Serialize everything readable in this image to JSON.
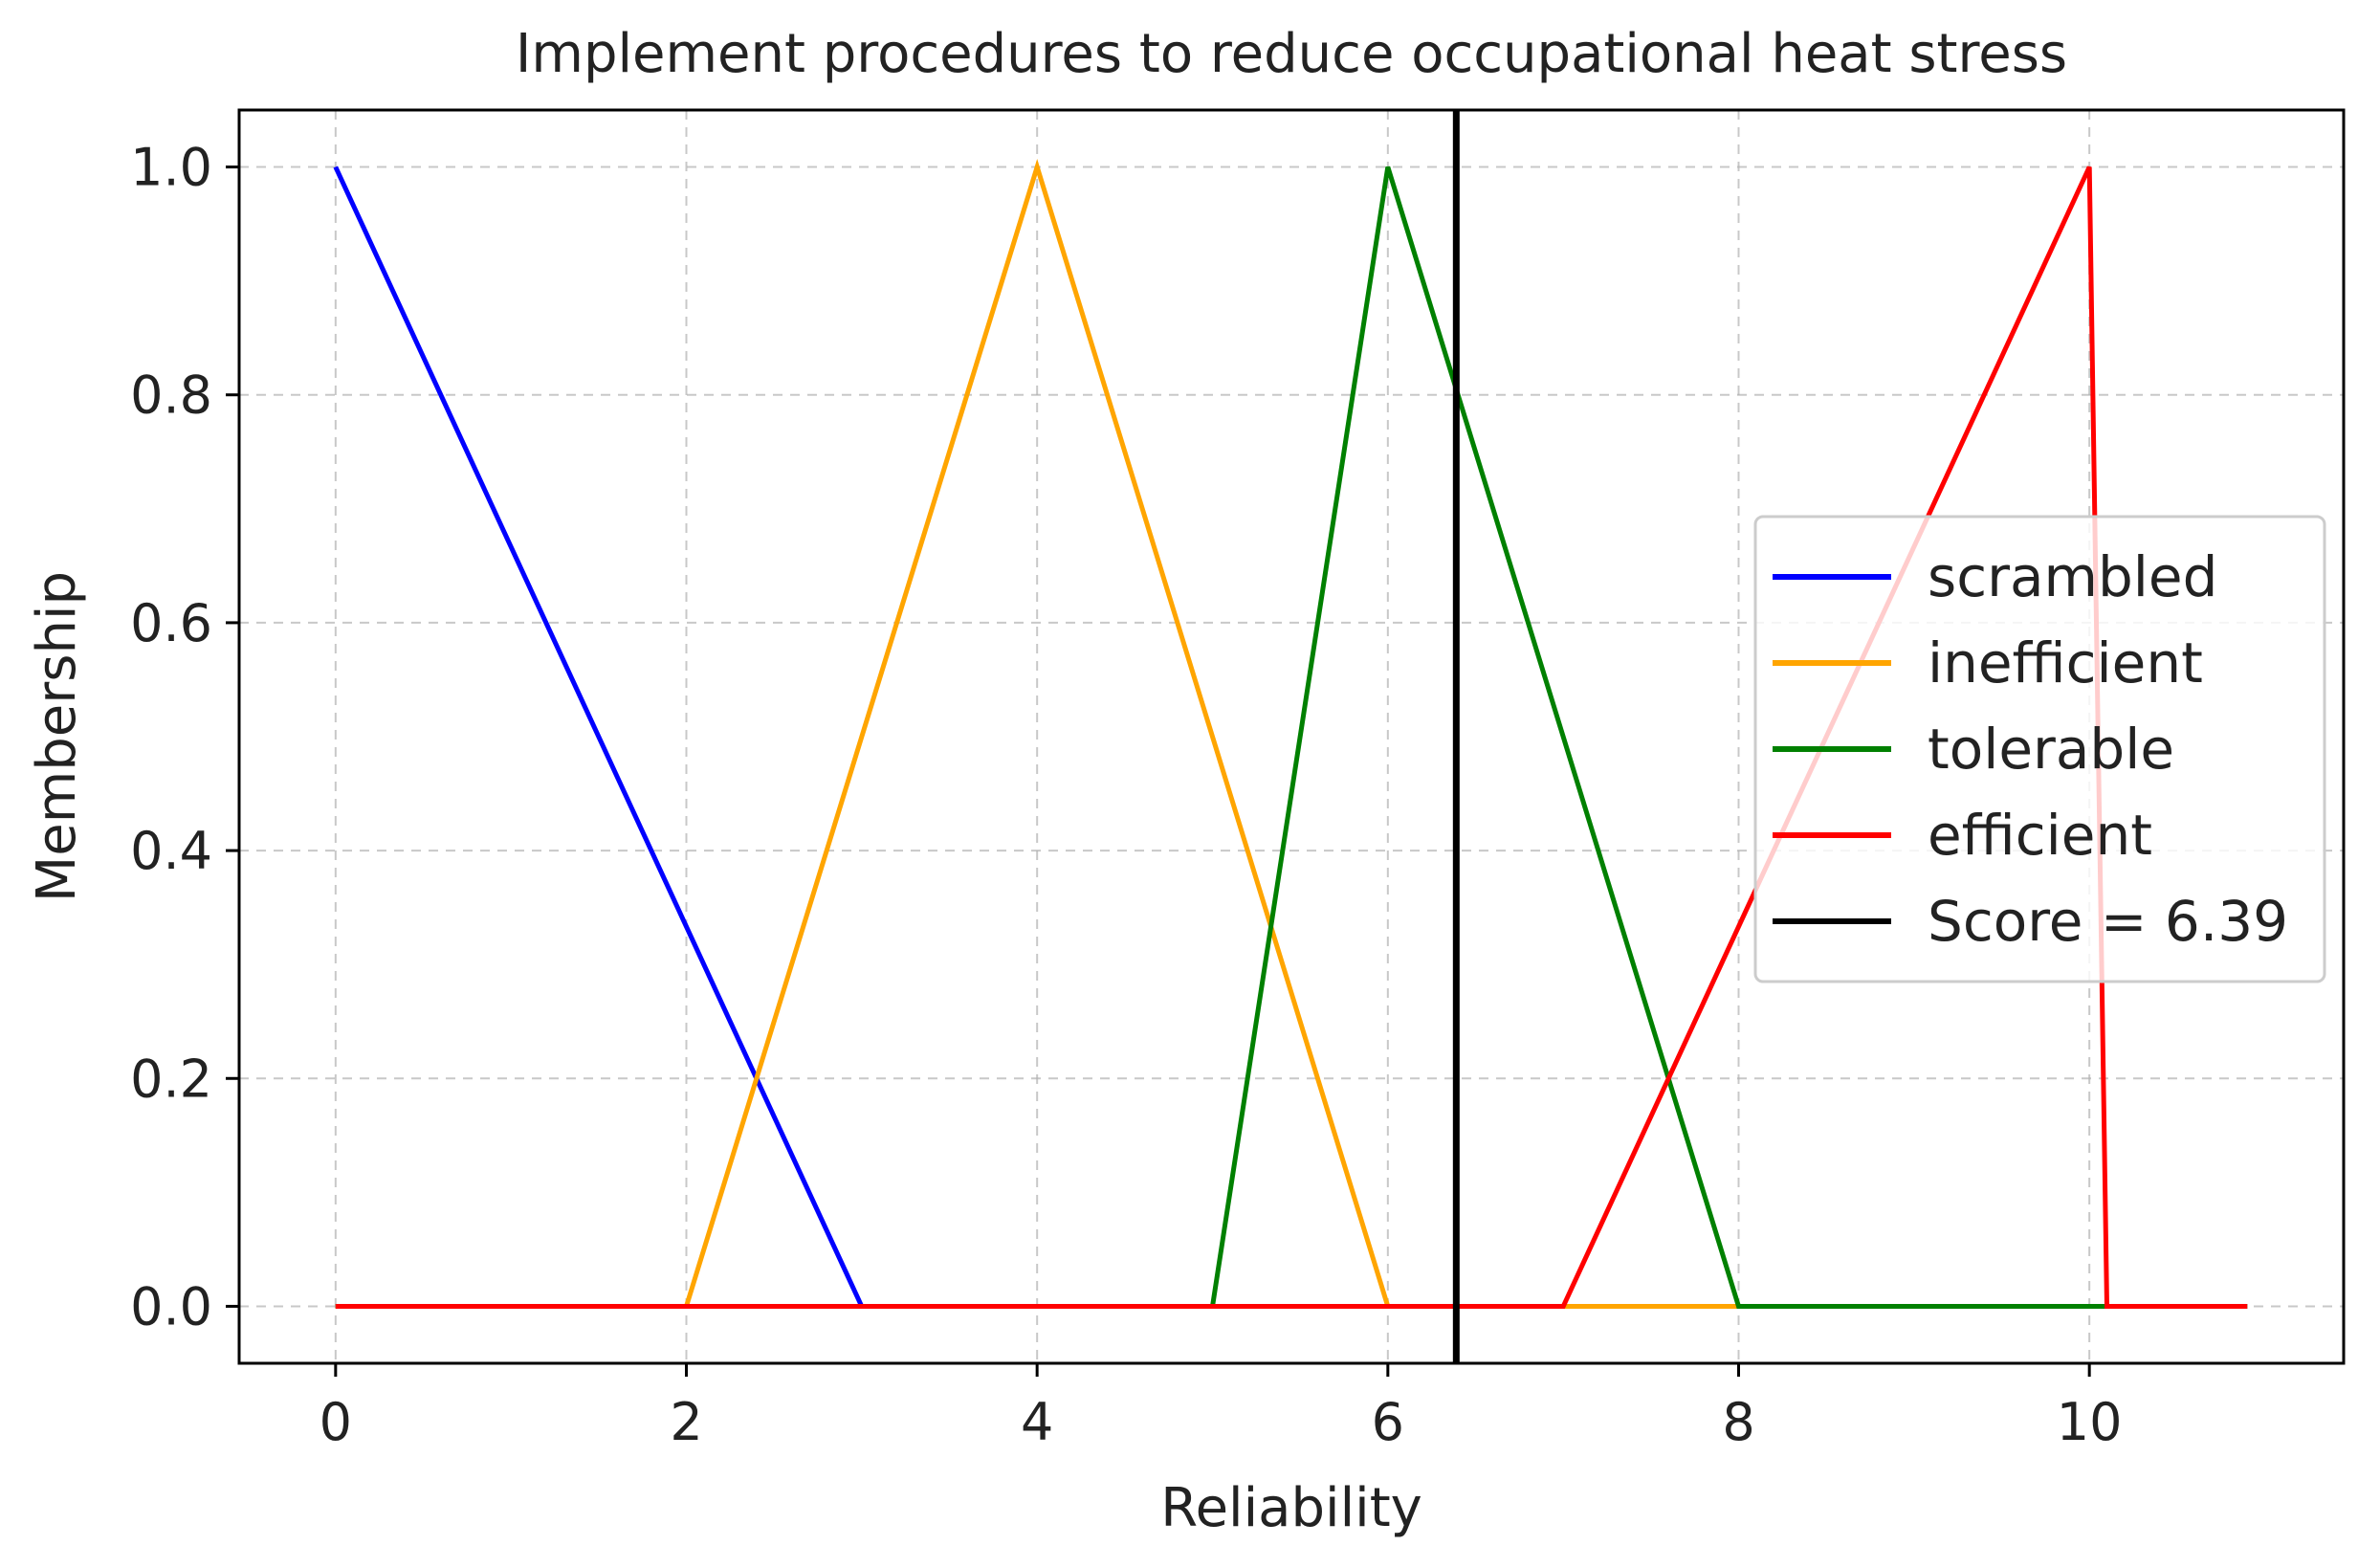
{
  "chart_data": {
    "type": "line",
    "title": "Implement procedures to reduce occupational heat stress",
    "xlabel": "Reliability",
    "ylabel": "Membership",
    "xlim": [
      -0.55,
      11.45
    ],
    "ylim": [
      -0.05,
      1.05
    ],
    "xticks": [
      0,
      2,
      4,
      6,
      8,
      10
    ],
    "xtick_labels": [
      "0",
      "2",
      "4",
      "6",
      "8",
      "10"
    ],
    "yticks": [
      0.0,
      0.2,
      0.4,
      0.6,
      0.8,
      1.0
    ],
    "ytick_labels": [
      "0.0",
      "0.2",
      "0.4",
      "0.6",
      "0.8",
      "1.0"
    ],
    "grid": true,
    "legend_position": "center-right",
    "series": [
      {
        "name": "scrambled",
        "color": "#0000ff",
        "x": [
          0,
          3,
          10.9
        ],
        "y": [
          1,
          0,
          0
        ]
      },
      {
        "name": "inefficient",
        "color": "#ffa500",
        "x": [
          0,
          2,
          4,
          6,
          10.9
        ],
        "y": [
          0,
          0,
          1,
          0,
          0
        ]
      },
      {
        "name": "tolerable",
        "color": "#008000",
        "x": [
          0,
          5,
          6,
          8,
          10.9
        ],
        "y": [
          0,
          0,
          1,
          0,
          0
        ]
      },
      {
        "name": "efficient",
        "color": "#ff0000",
        "x": [
          0,
          7,
          10,
          10.1,
          10.9
        ],
        "y": [
          0,
          0,
          1,
          0,
          0
        ]
      }
    ],
    "vline": {
      "name": "Score = 6.39",
      "x": 6.39,
      "color": "#000000"
    }
  }
}
